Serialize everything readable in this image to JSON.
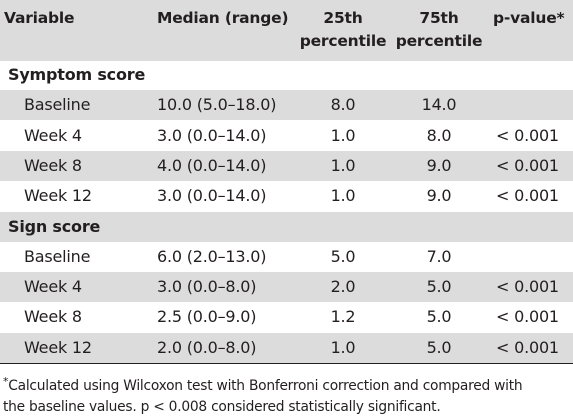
{
  "table": {
    "headers": {
      "variable": "Variable",
      "median_range": "Median (range)",
      "p25_line1": "25th",
      "p25_line2": "percentile",
      "p75_line1": "75th",
      "p75_line2": "percentile",
      "pvalue": "p-value*"
    },
    "sections": [
      {
        "label": "Symptom score",
        "rows": [
          {
            "variable": "Baseline",
            "median_range": "10.0 (5.0–18.0)",
            "p25": "8.0",
            "p75": "14.0",
            "pvalue": ""
          },
          {
            "variable": "Week 4",
            "median_range": "3.0 (0.0–14.0)",
            "p25": "1.0",
            "p75": "8.0",
            "pvalue": "< 0.001"
          },
          {
            "variable": "Week 8",
            "median_range": "4.0 (0.0–14.0)",
            "p25": "1.0",
            "p75": "9.0",
            "pvalue": "< 0.001"
          },
          {
            "variable": "Week 12",
            "median_range": "3.0 (0.0–14.0)",
            "p25": "1.0",
            "p75": "9.0",
            "pvalue": "< 0.001"
          }
        ]
      },
      {
        "label": "Sign score",
        "rows": [
          {
            "variable": "Baseline",
            "median_range": "6.0 (2.0–13.0)",
            "p25": "5.0",
            "p75": "7.0",
            "pvalue": ""
          },
          {
            "variable": "Week 4",
            "median_range": "3.0 (0.0–8.0)",
            "p25": "2.0",
            "p75": "5.0",
            "pvalue": "< 0.001"
          },
          {
            "variable": "Week 8",
            "median_range": "2.5 (0.0–9.0)",
            "p25": "1.2",
            "p75": "5.0",
            "pvalue": "< 0.001"
          },
          {
            "variable": "Week 12",
            "median_range": "2.0 (0.0–8.0)",
            "p25": "1.0",
            "p75": "5.0",
            "pvalue": "< 0.001"
          }
        ]
      }
    ]
  },
  "footnote": {
    "marker": "*",
    "line1": "Calculated using Wilcoxon test with Bonferroni correction and compared with",
    "line2": "the baseline values. p < 0.008 considered statistically significant."
  },
  "colors": {
    "shade": "#dcdcdc",
    "text": "#231f20"
  }
}
